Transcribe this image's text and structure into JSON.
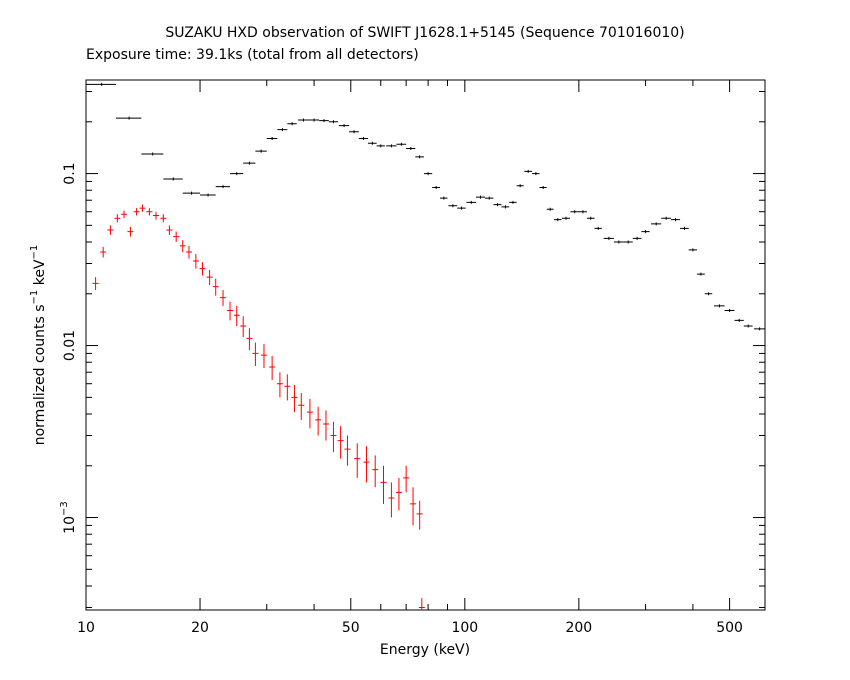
{
  "chart_data": {
    "type": "errorbar",
    "title": "SUZAKU HXD observation of SWIFT J1628.1+5145 (Sequence 701016010)",
    "subtitle": "Exposure time: 39.1ks (total from all detectors)",
    "xlabel": "Energy (keV)",
    "ylabel": [
      {
        "text": "normalized counts s"
      },
      {
        "text": "−1",
        "sup": true
      },
      {
        "text": " keV"
      },
      {
        "text": "−1",
        "sup": true
      }
    ],
    "xscale": "log",
    "yscale": "log",
    "xlim": [
      10,
      620
    ],
    "ylim": [
      0.00029,
      0.35
    ],
    "xticks": [
      10,
      20,
      50,
      100,
      200,
      500
    ],
    "xminorticks": [
      30,
      40,
      60,
      70,
      80,
      90,
      300,
      400
    ],
    "yticks": [
      {
        "value": 0.001,
        "label": "10",
        "sup": "−3"
      },
      0.01,
      0.1
    ],
    "yminorticks": [
      0.0003,
      0.0004,
      0.0005,
      0.0006,
      0.0007,
      0.0008,
      0.0009,
      0.002,
      0.003,
      0.004,
      0.005,
      0.006,
      0.007,
      0.008,
      0.009,
      0.02,
      0.03,
      0.04,
      0.05,
      0.06,
      0.07,
      0.08,
      0.09,
      0.2,
      0.3
    ],
    "series": [
      {
        "color": "#000000",
        "x": [
          11,
          13,
          15,
          17,
          19,
          21,
          23,
          25,
          27,
          29,
          31,
          33,
          35,
          37.5,
          40,
          42.5,
          45,
          48,
          51,
          54,
          57,
          60,
          64,
          68,
          72,
          76,
          80,
          84,
          88,
          93,
          98,
          104,
          110,
          116,
          122,
          128,
          134,
          140,
          147,
          154,
          161,
          168,
          176,
          185,
          195,
          205,
          215,
          225,
          240,
          255,
          270,
          285,
          300,
          320,
          340,
          360,
          380,
          400,
          420,
          440,
          470,
          500,
          530,
          560,
          600
        ],
        "xerr": [
          1,
          1,
          1,
          1,
          1,
          1,
          1,
          1,
          1,
          1,
          1,
          1,
          1,
          1.25,
          1.25,
          1.25,
          1.25,
          1.5,
          1.5,
          1.5,
          1.5,
          1.5,
          2,
          2,
          2,
          2,
          2,
          2,
          2,
          2.5,
          2.5,
          3,
          3,
          3,
          3,
          3,
          3,
          3,
          3.5,
          3.5,
          3.5,
          3.5,
          4,
          4.5,
          5,
          5,
          5,
          5,
          7.5,
          7.5,
          7.5,
          7.5,
          7.5,
          10,
          10,
          10,
          10,
          10,
          10,
          10,
          15,
          15,
          15,
          15,
          20
        ],
        "values": [
          0.33,
          0.21,
          0.13,
          0.093,
          0.077,
          0.075,
          0.084,
          0.1,
          0.115,
          0.135,
          0.16,
          0.18,
          0.195,
          0.205,
          0.205,
          0.203,
          0.2,
          0.19,
          0.175,
          0.16,
          0.15,
          0.145,
          0.145,
          0.148,
          0.14,
          0.125,
          0.1,
          0.083,
          0.072,
          0.065,
          0.063,
          0.068,
          0.073,
          0.072,
          0.066,
          0.064,
          0.068,
          0.085,
          0.103,
          0.1,
          0.083,
          0.062,
          0.054,
          0.055,
          0.06,
          0.06,
          0.055,
          0.048,
          0.042,
          0.04,
          0.04,
          0.042,
          0.046,
          0.051,
          0.055,
          0.054,
          0.048,
          0.036,
          0.026,
          0.02,
          0.017,
          0.016,
          0.014,
          0.013,
          0.0125
        ]
      },
      {
        "color": "#ff0000",
        "x": [
          10.6,
          11.1,
          11.6,
          12.1,
          12.6,
          13.1,
          13.6,
          14.1,
          14.7,
          15.3,
          16,
          16.6,
          17.3,
          18,
          18.7,
          19.5,
          20.3,
          21.2,
          22,
          23,
          24,
          25,
          26,
          27,
          28,
          29.5,
          31,
          32.5,
          34,
          35.5,
          37,
          39,
          41,
          43,
          45,
          47,
          49,
          52,
          55,
          58,
          61,
          64,
          67,
          70,
          73,
          76,
          77
        ],
        "values": [
          0.023,
          0.035,
          0.047,
          0.055,
          0.058,
          0.046,
          0.06,
          0.063,
          0.06,
          0.057,
          0.055,
          0.047,
          0.043,
          0.038,
          0.035,
          0.031,
          0.028,
          0.025,
          0.022,
          0.019,
          0.016,
          0.015,
          0.013,
          0.011,
          0.009,
          0.0088,
          0.0075,
          0.006,
          0.0058,
          0.005,
          0.0045,
          0.0041,
          0.0037,
          0.0035,
          0.003,
          0.0028,
          0.0025,
          0.0022,
          0.0021,
          0.0019,
          0.0016,
          0.0013,
          0.0014,
          0.0017,
          0.0012,
          0.00105,
          0.0003
        ],
        "yerr": [
          0.002,
          0.0025,
          0.003,
          0.003,
          0.003,
          0.003,
          0.003,
          0.003,
          0.003,
          0.003,
          0.003,
          0.003,
          0.003,
          0.003,
          0.003,
          0.003,
          0.0025,
          0.0025,
          0.0025,
          0.002,
          0.002,
          0.002,
          0.0018,
          0.0016,
          0.0014,
          0.0014,
          0.0012,
          0.001,
          0.001,
          0.0009,
          0.0008,
          0.0008,
          0.0007,
          0.0007,
          0.0006,
          0.0006,
          0.0005,
          0.0005,
          0.0005,
          0.0004,
          0.0004,
          0.0003,
          0.0003,
          0.0003,
          0.0003,
          0.0002,
          4e-05
        ]
      }
    ]
  }
}
